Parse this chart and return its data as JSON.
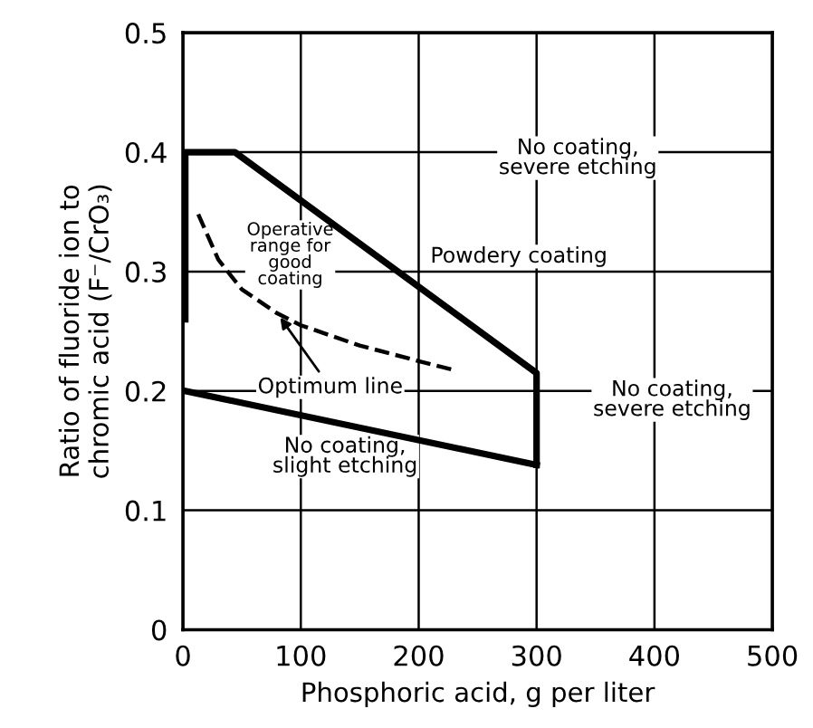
{
  "chart_data": {
    "type": "line",
    "xlabel": "Phosphoric acid, g per liter",
    "ylabel": "Ratio of fluoride ion to\nchromic acid (F⁻/CrO₃)",
    "xlim": [
      0,
      500
    ],
    "ylim": [
      0,
      0.5
    ],
    "xticks": [
      0,
      100,
      200,
      300,
      400,
      500
    ],
    "yticks": [
      0,
      0.1,
      0.2,
      0.3,
      0.4,
      0.5
    ],
    "grid": true,
    "legend": false,
    "marker": "none",
    "series": [
      {
        "color": "#000000",
        "line_style": "solid",
        "x": [
          2,
          2,
          44,
          300,
          300
        ],
        "values": [
          0.26,
          0.4,
          0.4,
          0.215,
          0.138
        ]
      },
      {
        "color": "#000000",
        "line_style": "solid",
        "x": [
          2,
          300
        ],
        "values": [
          0.2,
          0.138
        ]
      },
      {
        "color": "#000000",
        "line_style": "dashed",
        "x": [
          13,
          30,
          50,
          80,
          100,
          150,
          200,
          228
        ],
        "values": [
          0.348,
          0.31,
          0.285,
          0.265,
          0.255,
          0.238,
          0.225,
          0.218
        ]
      }
    ],
    "annotations": [
      "No coating,\nsevere etching",
      "Powdery coating",
      "Operative\nrange for\ngood\ncoating",
      {
        "text": "Optimum line",
        "x": 80,
        "y": 0.265
      },
      "No coating,\nsevere etching",
      "No coating,\nslight etching"
    ]
  }
}
